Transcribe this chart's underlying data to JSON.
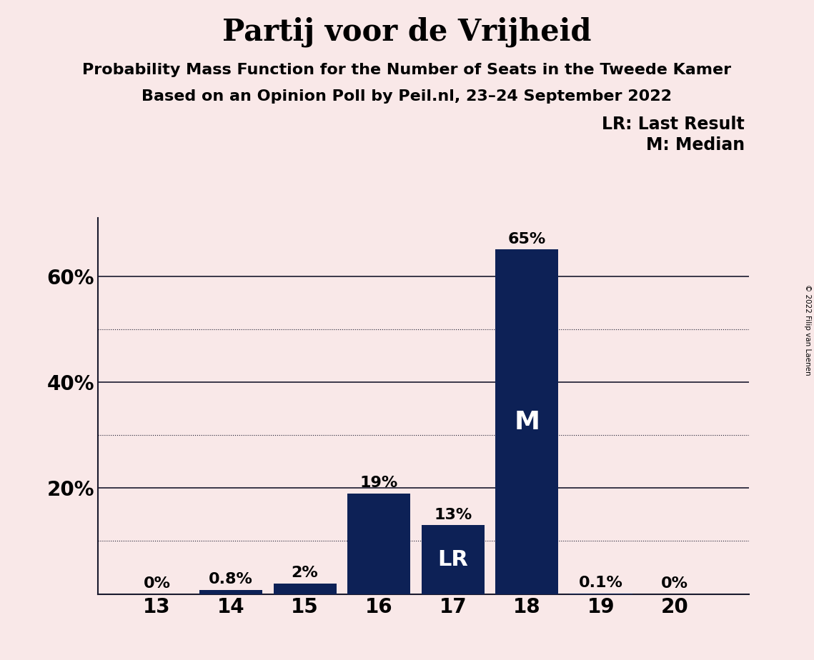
{
  "title": "Partij voor de Vrijheid",
  "subtitle1": "Probability Mass Function for the Number of Seats in the Tweede Kamer",
  "subtitle2": "Based on an Opinion Poll by Peil.nl, 23–24 September 2022",
  "copyright": "© 2022 Filip van Laenen",
  "seats": [
    13,
    14,
    15,
    16,
    17,
    18,
    19,
    20
  ],
  "probabilities": [
    0.0,
    0.8,
    2.0,
    19.0,
    13.0,
    65.0,
    0.1,
    0.0
  ],
  "bar_labels": [
    "0%",
    "0.8%",
    "2%",
    "19%",
    "13%",
    "65%",
    "0.1%",
    "0%"
  ],
  "bar_color": "#0d2156",
  "background_color": "#f9e8e8",
  "last_result_seat": 17,
  "median_seat": 18,
  "legend_lr": "LR: Last Result",
  "legend_m": "M: Median",
  "solid_yticks": [
    20,
    40,
    60
  ],
  "dotted_yticks": [
    10,
    30,
    50
  ],
  "ylim": [
    0,
    71
  ],
  "title_fontsize": 30,
  "subtitle_fontsize": 16,
  "axis_tick_fontsize": 20,
  "bar_label_fontsize": 16,
  "legend_fontsize": 17,
  "inner_label_fontsize_lr": 22,
  "inner_label_fontsize_m": 26
}
